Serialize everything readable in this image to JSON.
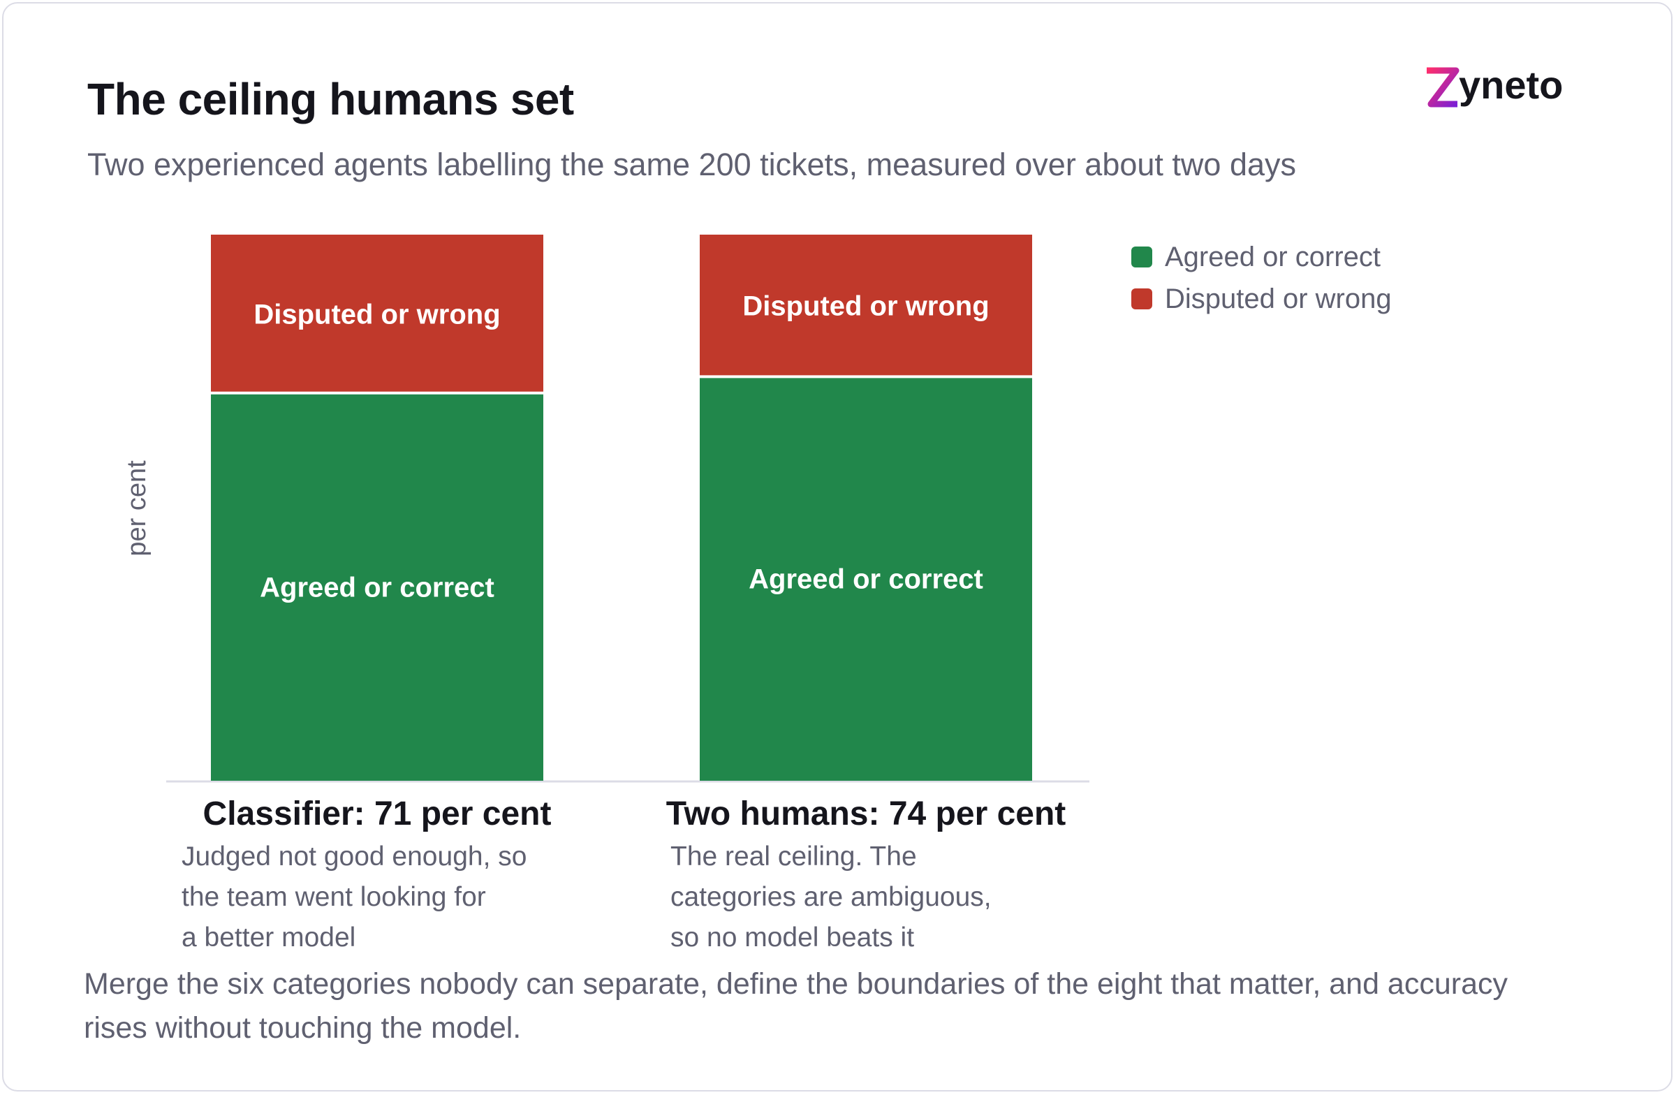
{
  "header": {
    "title": "The ceiling humans set",
    "subtitle": "Two experienced agents labelling the same 200 tickets, measured over about two days",
    "logo_text": "zyneto"
  },
  "colors": {
    "agreed": "#21874b",
    "disputed": "#c0392b",
    "accent": "#e5175f"
  },
  "chart_data": {
    "type": "bar",
    "stacked": true,
    "categories": [
      "Classifier: 71 per cent",
      "Two humans: 74 per cent"
    ],
    "series": [
      {
        "name": "Agreed or correct",
        "values": [
          71,
          74
        ],
        "color": "#21874b"
      },
      {
        "name": "Disputed or wrong",
        "values": [
          29,
          26
        ],
        "color": "#c0392b"
      }
    ],
    "ylabel": "per cent",
    "ylim": [
      0,
      100
    ],
    "grid": false,
    "legend": "top-right",
    "segment_labels": [
      "Agreed or correct",
      "Disputed or wrong"
    ]
  },
  "notes": [
    "Judged not good enough, so\nthe team went looking for\na better model",
    "The real ceiling. The\ncategories are ambiguous,\nso no model beats it"
  ],
  "footer": "Merge the six categories nobody can separate, define the boundaries of the eight that matter, and accuracy rises without touching the model."
}
